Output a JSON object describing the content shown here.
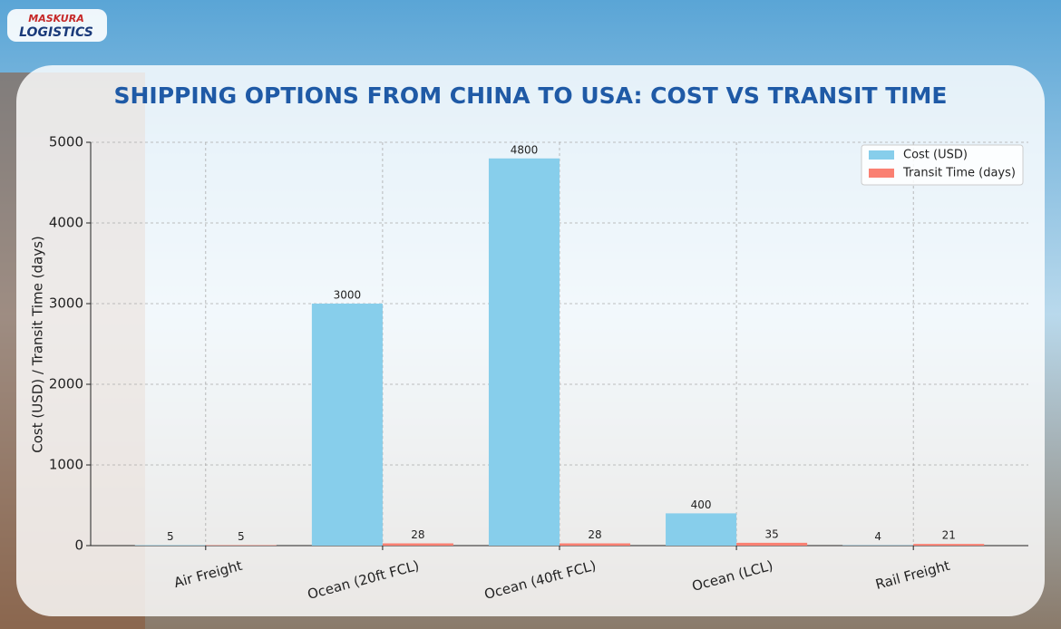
{
  "brand": {
    "line1": "MASKURA",
    "line2": "LOGISTICS"
  },
  "chart_data": {
    "type": "bar",
    "title": "SHIPPING OPTIONS FROM CHINA TO USA: COST VS TRANSIT TIME",
    "y_label": "Cost (USD) / Transit Time (days)",
    "categories": [
      "Air Freight",
      "Ocean (20ft FCL)",
      "Ocean (40ft FCL)",
      "Ocean (LCL)",
      "Rail Freight"
    ],
    "series": [
      {
        "name": "Cost (USD)",
        "color": "#87ceeb",
        "values": [
          5,
          3000,
          4800,
          400,
          4
        ]
      },
      {
        "name": "Transit Time (days)",
        "color": "#fa8072",
        "values": [
          5,
          28,
          28,
          35,
          21
        ]
      }
    ],
    "ylim": [
      0,
      5000
    ],
    "yticks": [
      0,
      1000,
      2000,
      3000,
      4000,
      5000
    ],
    "grid": true,
    "legend": "upper right"
  }
}
